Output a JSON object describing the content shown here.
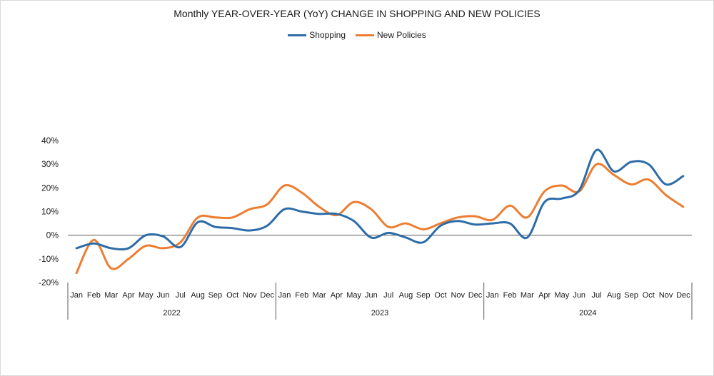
{
  "chart_data": {
    "type": "line",
    "title": "Monthly YEAR-OVER-YEAR (YoY) CHANGE IN SHOPPING AND NEW POLICIES",
    "xlabel": "",
    "ylabel": "",
    "ylim": [
      -20,
      40
    ],
    "y_ticks": [
      "-20%",
      "-10%",
      "0%",
      "10%",
      "20%",
      "30%",
      "40%"
    ],
    "grid": false,
    "legend_position": "top-center",
    "months": [
      "Jan",
      "Feb",
      "Mar",
      "Apr",
      "May",
      "Jun",
      "Jul",
      "Aug",
      "Sep",
      "Oct",
      "Nov",
      "Dec"
    ],
    "years": [
      "2022",
      "2023",
      "2024"
    ],
    "series": [
      {
        "name": "Shopping",
        "color": "#2e6ca8",
        "values": [
          -5.5,
          -3.5,
          -5.5,
          -5.5,
          0,
          -0.5,
          -5,
          5.5,
          3.5,
          3,
          2,
          4,
          11,
          10,
          9,
          9,
          6,
          -1,
          1,
          -1,
          -3,
          4,
          6,
          4.5,
          5,
          5,
          -1,
          14,
          15.5,
          19,
          36,
          27,
          31,
          30,
          21.5,
          25
        ]
      },
      {
        "name": "New Policies",
        "color": "#ed7d31",
        "values": [
          -16,
          -2,
          -14,
          -10,
          -4.5,
          -5.5,
          -3,
          7.5,
          7.5,
          7.5,
          11,
          13,
          21,
          18,
          12,
          8.5,
          14,
          11,
          3.5,
          5,
          2.5,
          5,
          7.5,
          8,
          6.5,
          12.5,
          7.5,
          18.5,
          21,
          18.5,
          30,
          25.5,
          21.5,
          23.5,
          17,
          12
        ]
      }
    ]
  }
}
